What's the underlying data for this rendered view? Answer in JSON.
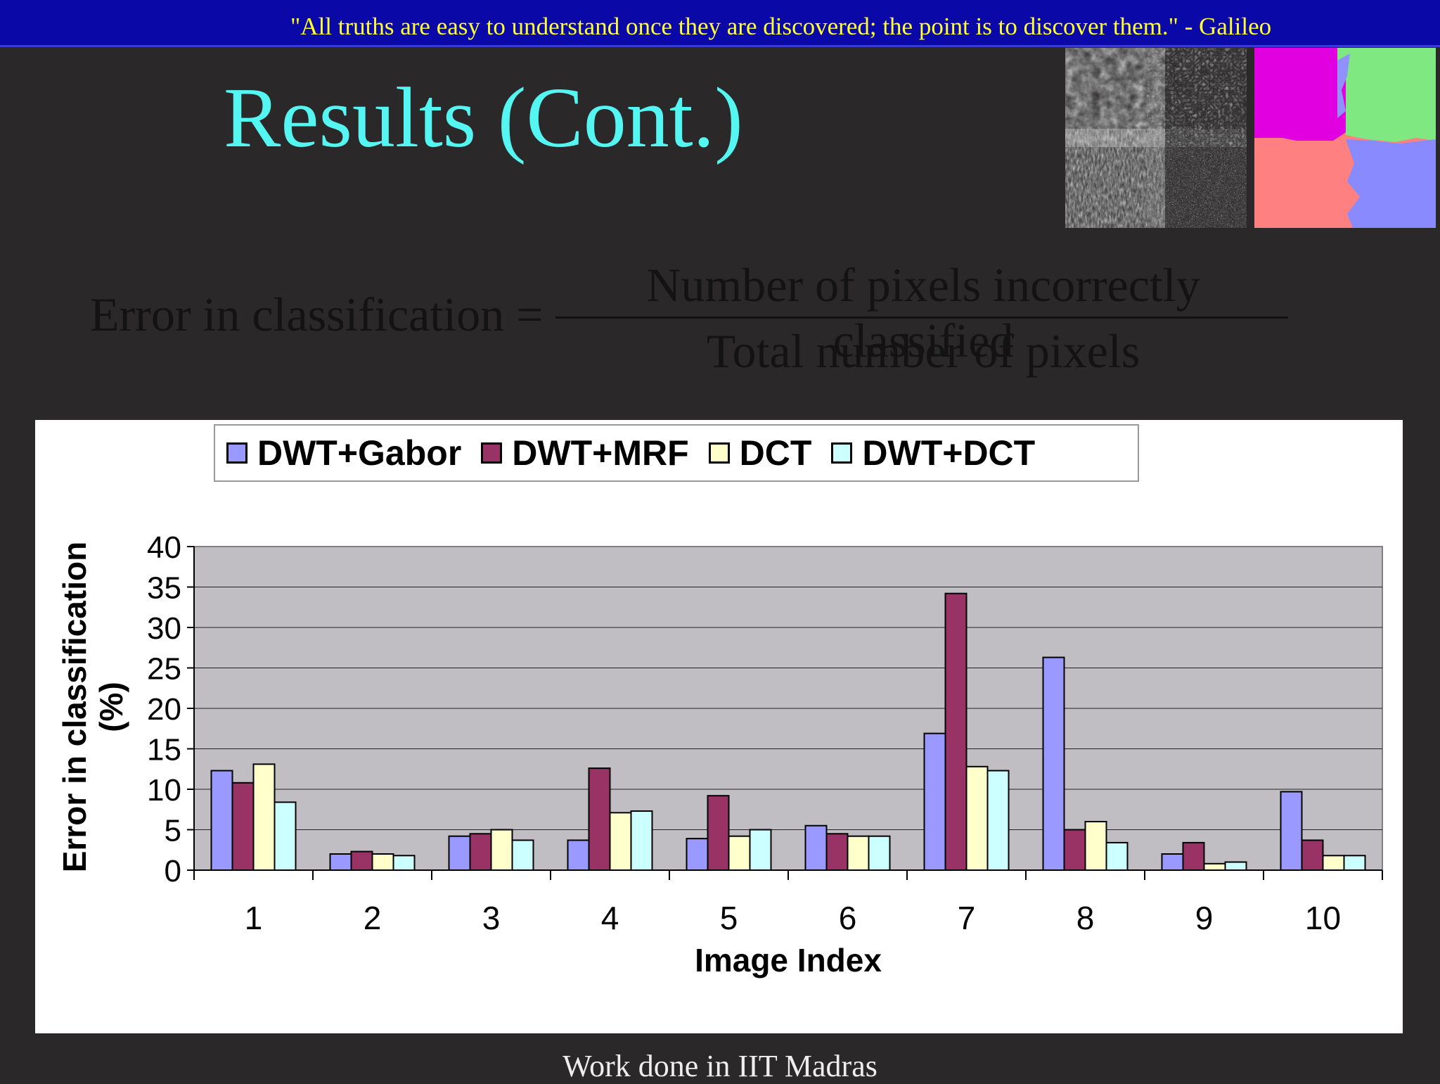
{
  "quote": "\"All truths are easy to understand once they are discovered; the point is to discover them.\" - Galileo",
  "title": "Results (Cont.)",
  "formula": {
    "lhs": "Error in classification =",
    "numerator": "Number of pixels incorrectly classified",
    "denominator": "Total number of pixels"
  },
  "footer": "Work done in IIT Madras",
  "chart_data": {
    "type": "bar",
    "categories": [
      "1",
      "2",
      "3",
      "4",
      "5",
      "6",
      "7",
      "8",
      "9",
      "10"
    ],
    "series": [
      {
        "name": "DWT+Gabor",
        "color": "#9999ff",
        "values": [
          12.3,
          2.0,
          4.2,
          3.7,
          3.9,
          5.5,
          16.9,
          26.3,
          2.0,
          9.7
        ]
      },
      {
        "name": "DWT+MRF",
        "color": "#993366",
        "values": [
          10.8,
          2.3,
          4.5,
          12.6,
          9.2,
          4.5,
          34.2,
          5.0,
          3.4,
          3.7
        ]
      },
      {
        "name": "DCT",
        "color": "#ffffcc",
        "values": [
          13.1,
          2.0,
          5.0,
          7.1,
          4.2,
          4.2,
          12.8,
          6.0,
          0.8,
          1.8
        ]
      },
      {
        "name": "DWT+DCT",
        "color": "#ccffff",
        "values": [
          8.4,
          1.8,
          3.7,
          7.3,
          5.0,
          4.2,
          12.3,
          3.4,
          1.0,
          1.8
        ]
      }
    ],
    "xlabel": "Image Index",
    "ylabel": "Error in classification (%)",
    "ylim": [
      0,
      40
    ],
    "yticks": [
      "0",
      "5",
      "10",
      "15",
      "20",
      "25",
      "30",
      "35",
      "40"
    ],
    "grid": true,
    "legend": "top"
  }
}
